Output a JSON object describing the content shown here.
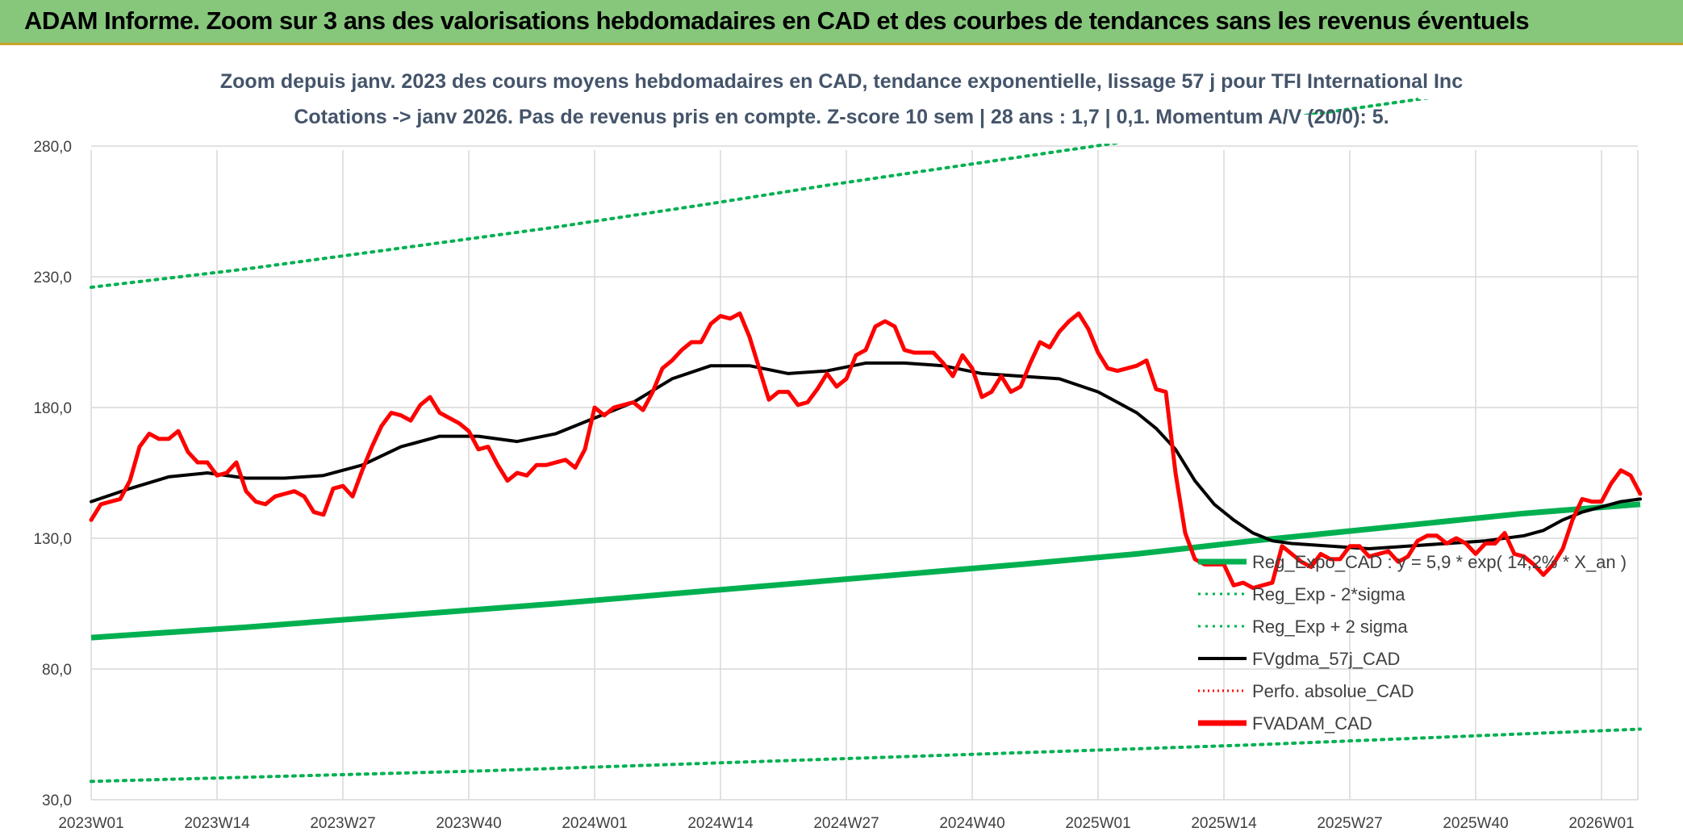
{
  "header": {
    "title": "ADAM Informe. Zoom sur 3 ans des valorisations hebdomadaires en CAD et des courbes de tendances sans les revenus éventuels"
  },
  "chart_data": {
    "type": "line",
    "title": "Zoom depuis janv. 2023 des cours moyens hebdomadaires en CAD, tendance exponentielle, lissage 57 j pour TFI International Inc",
    "subtitle": "Cotations -> janv 2026. Pas de revenus pris en compte. Z-score 10 sem | 28 ans : 1,7 | 0,1. Momentum A/V (20/0): 5.",
    "xlabel": "",
    "ylabel": "",
    "ylim": [
      30,
      280
    ],
    "y_ticks": [
      "30,0",
      "80,0",
      "130,0",
      "180,0",
      "230,0",
      "280,0"
    ],
    "x_ticks": [
      "2023W01",
      "2023W14",
      "2023W27",
      "2023W40",
      "2024W01",
      "2024W14",
      "2024W27",
      "2024W40",
      "2025W01",
      "2025W14",
      "2025W27",
      "2025W40",
      "2026W01"
    ],
    "grid": true,
    "legend_position": "bottom-right",
    "legend": [
      {
        "label": "Reg_Expo_CAD : y = 5,9 * exp( 14,2% *  X_an )",
        "color": "#00b050",
        "style": "thick"
      },
      {
        "label": "Reg_Exp - 2*sigma",
        "color": "#00b050",
        "style": "dotted"
      },
      {
        "label": "Reg_Exp + 2 sigma",
        "color": "#00b050",
        "style": "dotted"
      },
      {
        "label": "FVgdma_57j_CAD",
        "color": "#000000",
        "style": "solid"
      },
      {
        "label": "Perfo. absolue_CAD",
        "color": "#ff0000",
        "style": "dotted"
      },
      {
        "label": "FVADAM_CAD",
        "color": "#ff0000",
        "style": "thick"
      }
    ],
    "series": [
      {
        "name": "FVADAM_CAD",
        "color": "#ff0000",
        "points": [
          [
            0,
            137
          ],
          [
            1,
            143
          ],
          [
            2,
            144
          ],
          [
            3,
            145
          ],
          [
            4,
            152
          ],
          [
            5,
            165
          ],
          [
            6,
            170
          ],
          [
            7,
            168
          ],
          [
            8,
            168
          ],
          [
            9,
            171
          ],
          [
            10,
            163
          ],
          [
            11,
            159
          ],
          [
            12,
            159
          ],
          [
            13,
            154
          ],
          [
            14,
            155
          ],
          [
            15,
            159
          ],
          [
            16,
            148
          ],
          [
            17,
            144
          ],
          [
            18,
            143
          ],
          [
            19,
            146
          ],
          [
            20,
            147
          ],
          [
            21,
            148
          ],
          [
            22,
            146
          ],
          [
            23,
            140
          ],
          [
            24,
            139
          ],
          [
            25,
            149
          ],
          [
            26,
            150
          ],
          [
            27,
            146
          ],
          [
            28,
            156
          ],
          [
            29,
            165
          ],
          [
            30,
            173
          ],
          [
            31,
            178
          ],
          [
            32,
            177
          ],
          [
            33,
            175
          ],
          [
            34,
            181
          ],
          [
            35,
            184
          ],
          [
            36,
            178
          ],
          [
            37,
            176
          ],
          [
            38,
            174
          ],
          [
            39,
            171
          ],
          [
            40,
            164
          ],
          [
            41,
            165
          ],
          [
            42,
            158
          ],
          [
            43,
            152
          ],
          [
            44,
            155
          ],
          [
            45,
            154
          ],
          [
            46,
            158
          ],
          [
            47,
            158
          ],
          [
            48,
            159
          ],
          [
            49,
            160
          ],
          [
            50,
            157
          ],
          [
            51,
            164
          ],
          [
            52,
            180
          ],
          [
            53,
            177
          ],
          [
            54,
            180
          ],
          [
            55,
            181
          ],
          [
            56,
            182
          ],
          [
            57,
            179
          ],
          [
            58,
            186
          ],
          [
            59,
            195
          ],
          [
            60,
            198
          ],
          [
            61,
            202
          ],
          [
            62,
            205
          ],
          [
            63,
            205
          ],
          [
            64,
            212
          ],
          [
            65,
            215
          ],
          [
            66,
            214
          ],
          [
            67,
            216
          ],
          [
            68,
            207
          ],
          [
            69,
            195
          ],
          [
            70,
            183
          ],
          [
            71,
            186
          ],
          [
            72,
            186
          ],
          [
            73,
            181
          ],
          [
            74,
            182
          ],
          [
            75,
            187
          ],
          [
            76,
            193
          ],
          [
            77,
            188
          ],
          [
            78,
            191
          ],
          [
            79,
            200
          ],
          [
            80,
            202
          ],
          [
            81,
            211
          ],
          [
            82,
            213
          ],
          [
            83,
            211
          ],
          [
            84,
            202
          ],
          [
            85,
            201
          ],
          [
            86,
            201
          ],
          [
            87,
            201
          ],
          [
            88,
            197
          ],
          [
            89,
            192
          ],
          [
            90,
            200
          ],
          [
            91,
            195
          ],
          [
            92,
            184
          ],
          [
            93,
            186
          ],
          [
            94,
            192
          ],
          [
            95,
            186
          ],
          [
            96,
            188
          ],
          [
            97,
            197
          ],
          [
            98,
            205
          ],
          [
            99,
            203
          ],
          [
            100,
            209
          ],
          [
            101,
            213
          ],
          [
            102,
            216
          ],
          [
            103,
            210
          ],
          [
            104,
            201
          ],
          [
            105,
            195
          ],
          [
            106,
            194
          ],
          [
            107,
            195
          ],
          [
            108,
            196
          ],
          [
            109,
            198
          ],
          [
            110,
            187
          ],
          [
            111,
            186
          ],
          [
            112,
            155
          ],
          [
            113,
            132
          ],
          [
            114,
            122
          ],
          [
            115,
            120
          ],
          [
            116,
            120
          ],
          [
            117,
            120
          ],
          [
            118,
            112
          ],
          [
            119,
            113
          ],
          [
            120,
            111
          ],
          [
            121,
            112
          ],
          [
            122,
            113
          ],
          [
            123,
            127
          ],
          [
            124,
            124
          ],
          [
            125,
            121
          ],
          [
            126,
            119
          ],
          [
            127,
            124
          ],
          [
            128,
            122
          ],
          [
            129,
            122
          ],
          [
            130,
            127
          ],
          [
            131,
            127
          ],
          [
            132,
            123
          ],
          [
            133,
            124
          ],
          [
            134,
            125
          ],
          [
            135,
            121
          ],
          [
            136,
            123
          ],
          [
            137,
            129
          ],
          [
            138,
            131
          ],
          [
            139,
            131
          ],
          [
            140,
            128
          ],
          [
            141,
            130
          ],
          [
            142,
            128
          ],
          [
            143,
            124
          ],
          [
            144,
            128
          ],
          [
            145,
            128
          ],
          [
            146,
            132
          ],
          [
            147,
            124
          ],
          [
            148,
            123
          ],
          [
            149,
            120
          ],
          [
            150,
            116
          ],
          [
            151,
            120
          ],
          [
            152,
            126
          ],
          [
            153,
            137
          ],
          [
            154,
            145
          ],
          [
            155,
            144
          ],
          [
            156,
            144
          ],
          [
            157,
            151
          ],
          [
            158,
            156
          ],
          [
            159,
            154
          ],
          [
            160,
            147
          ]
        ]
      },
      {
        "name": "FVgdma_57j_CAD",
        "color": "#000000",
        "points": [
          [
            0,
            144
          ],
          [
            4,
            149
          ],
          [
            8,
            153.5
          ],
          [
            12,
            155
          ],
          [
            16,
            153
          ],
          [
            20,
            153
          ],
          [
            24,
            154
          ],
          [
            28,
            158
          ],
          [
            32,
            165
          ],
          [
            36,
            169
          ],
          [
            40,
            169
          ],
          [
            44,
            167
          ],
          [
            48,
            170
          ],
          [
            52,
            176
          ],
          [
            56,
            182
          ],
          [
            60,
            191
          ],
          [
            64,
            196
          ],
          [
            68,
            196
          ],
          [
            72,
            193
          ],
          [
            76,
            194
          ],
          [
            80,
            197
          ],
          [
            84,
            197
          ],
          [
            88,
            196
          ],
          [
            92,
            193
          ],
          [
            96,
            192
          ],
          [
            100,
            191
          ],
          [
            104,
            186
          ],
          [
            106,
            182
          ],
          [
            108,
            178
          ],
          [
            110,
            172
          ],
          [
            112,
            164
          ],
          [
            114,
            152
          ],
          [
            116,
            143
          ],
          [
            118,
            137
          ],
          [
            120,
            132
          ],
          [
            122,
            129
          ],
          [
            124,
            128
          ],
          [
            128,
            127
          ],
          [
            132,
            126
          ],
          [
            136,
            127
          ],
          [
            140,
            128
          ],
          [
            144,
            129
          ],
          [
            148,
            131
          ],
          [
            150,
            133
          ],
          [
            152,
            137
          ],
          [
            154,
            140
          ],
          [
            156,
            142
          ],
          [
            158,
            144
          ],
          [
            160,
            145
          ]
        ]
      },
      {
        "name": "Reg_Expo_CAD : y = 5,9 * exp( 14,2% *  X_an )",
        "color": "#00b050",
        "points": [
          [
            0,
            92
          ],
          [
            16,
            96
          ],
          [
            32,
            100.5
          ],
          [
            48,
            105
          ],
          [
            64,
            110
          ],
          [
            80,
            115
          ],
          [
            96,
            120
          ],
          [
            108,
            124
          ],
          [
            120,
            129
          ],
          [
            136,
            135
          ],
          [
            148,
            139.5
          ],
          [
            160,
            143
          ]
        ]
      },
      {
        "name": "Reg_Exp - 2*sigma",
        "color": "#00b050",
        "points": [
          [
            0,
            37
          ],
          [
            40,
            41
          ],
          [
            80,
            46
          ],
          [
            120,
            51
          ],
          [
            160,
            57
          ]
        ]
      },
      {
        "name": "Reg_Exp + 2 sigma",
        "color": "#00b050",
        "points": [
          [
            0,
            226
          ],
          [
            16,
            233
          ],
          [
            32,
            241
          ],
          [
            48,
            249
          ],
          [
            64,
            258
          ],
          [
            76,
            265
          ],
          [
            87,
            271
          ],
          [
            124,
            291
          ],
          [
            160,
            310
          ]
        ]
      }
    ]
  }
}
